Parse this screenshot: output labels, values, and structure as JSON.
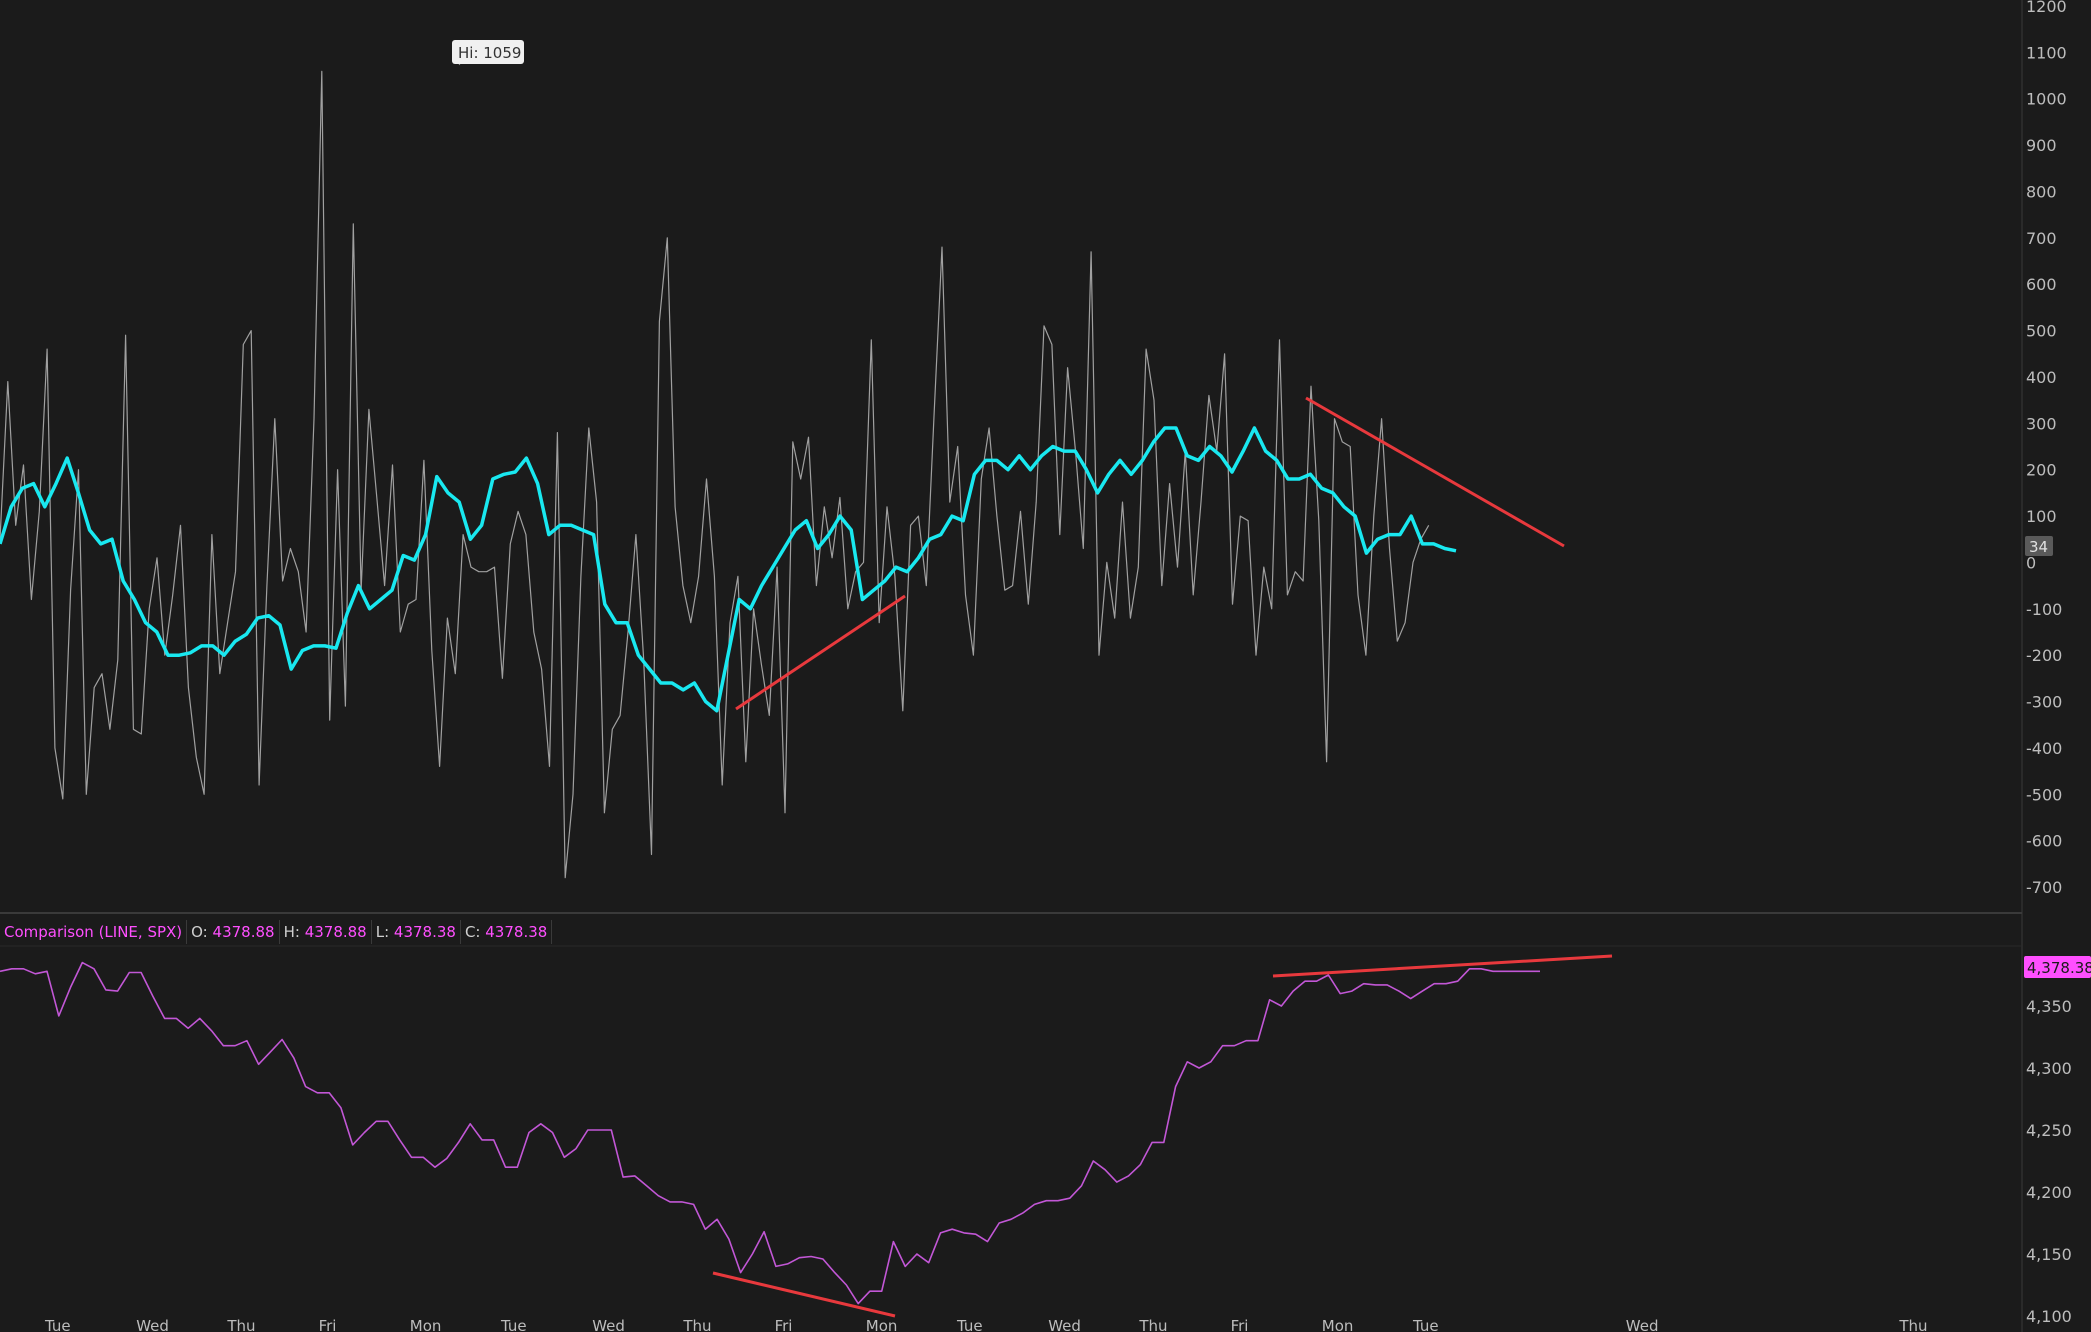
{
  "chart_data": [
    {
      "type": "line",
      "panel": "upper",
      "title": "",
      "ylim": [
        -760,
        1210
      ],
      "yticks": [
        1200,
        1100,
        1000,
        900,
        800,
        700,
        600,
        500,
        400,
        300,
        200,
        100,
        0,
        -100,
        -200,
        -300,
        -400,
        -500,
        -600,
        -700
      ],
      "high_annotation": "Hi: 1059",
      "last_value_badge": "34",
      "series": [
        {
          "color": "#a0a0a0",
          "values": [
            50,
            390,
            80,
            210,
            -80,
            110,
            460,
            -400,
            -510,
            -60,
            200,
            -500,
            -270,
            -240,
            -360,
            -210,
            490,
            -360,
            -370,
            -100,
            10,
            -200,
            -70,
            80,
            -270,
            -420,
            -500,
            60,
            -240,
            -130,
            -20,
            470,
            500,
            -480,
            -50,
            310,
            -40,
            30,
            -20,
            -150,
            310,
            1059,
            -340,
            200,
            -310,
            730,
            -60,
            330,
            140,
            -50,
            210,
            -150,
            -90,
            -80,
            220,
            -190,
            -440,
            -120,
            -240,
            60,
            -10,
            -20,
            -20,
            -10,
            -250,
            40,
            110,
            60,
            -150,
            -230,
            -440,
            280,
            -680,
            -500,
            -30,
            290,
            130,
            -540,
            -360,
            -330,
            -150,
            60,
            -210,
            -630,
            520,
            700,
            120,
            -50,
            -130,
            -30,
            180,
            -30,
            -480,
            -130,
            -30,
            -430,
            -100,
            -220,
            -330,
            -10,
            -540,
            260,
            180,
            270,
            -50,
            120,
            10,
            140,
            -100,
            -20,
            0,
            480,
            -130,
            120,
            -30,
            -320,
            80,
            100,
            -50,
            320,
            680,
            130,
            250,
            -70,
            -200,
            180,
            290,
            100,
            -60,
            -50,
            110,
            -90,
            130,
            510,
            470,
            60,
            420,
            240,
            30,
            670,
            -200,
            0,
            -120,
            130,
            -120,
            -10,
            460,
            350,
            -50,
            170,
            -10,
            240,
            -70,
            130,
            360,
            240,
            450,
            -90,
            100,
            90,
            -200,
            -10,
            -100,
            480,
            -70,
            -20,
            -40,
            380,
            90,
            -430,
            310,
            260,
            250,
            -70,
            -200,
            100,
            310,
            30,
            -170,
            -130,
            0,
            50,
            80
          ],
          "start": 0
        },
        {
          "color": "#19e8f0",
          "values": [
            40,
            120,
            160,
            170,
            120,
            170,
            225,
            150,
            70,
            40,
            50,
            -40,
            -80,
            -130,
            -150,
            -200,
            -200,
            -195,
            -180,
            -180,
            -200,
            -170,
            -155,
            -120,
            -115,
            -135,
            -230,
            -190,
            -180,
            -180,
            -185,
            -110,
            -50,
            -100,
            -80,
            -60,
            15,
            5,
            60,
            185,
            150,
            130,
            50,
            80,
            180,
            190,
            195,
            225,
            170,
            60,
            80,
            80,
            70,
            60,
            -90,
            -130,
            -130,
            -200,
            -230,
            -260,
            -260,
            -275,
            -260,
            -300,
            -320,
            -200,
            -80,
            -100,
            -50,
            -10,
            30,
            70,
            90,
            30,
            60,
            100,
            70,
            -80,
            -60,
            -40,
            -10,
            -20,
            10,
            50,
            60,
            100,
            90,
            190,
            220,
            220,
            200,
            230,
            200,
            230,
            250,
            240,
            240,
            200,
            150,
            190,
            220,
            190,
            220,
            260,
            290,
            290,
            230,
            220,
            250,
            230,
            195,
            240,
            290,
            240,
            220,
            180,
            180,
            190,
            160,
            150,
            120,
            100,
            20,
            50,
            60,
            60,
            100,
            40,
            40,
            30,
            25
          ],
          "start": 0
        }
      ]
    },
    {
      "type": "line",
      "panel": "lower",
      "title": "Comparison (LINE, SPX)",
      "legend": [
        {
          "k": "O:",
          "v": "4378.88"
        },
        {
          "k": "H:",
          "v": "4378.88"
        },
        {
          "k": "L:",
          "v": "4378.38"
        },
        {
          "k": "C:",
          "v": "4378.38"
        }
      ],
      "ylim": [
        4100,
        4395
      ],
      "yticks": [
        "4,350",
        "4,300",
        "4,250",
        "4,200",
        "4,150",
        "4,100"
      ],
      "ytick_values": [
        4350,
        4300,
        4250,
        4200,
        4150,
        4100
      ],
      "last_value_badge": "4,378.38",
      "series": [
        {
          "color": "#c257d6",
          "values": [
            4378,
            4380,
            4380,
            4376,
            4378,
            4342,
            4365,
            4385,
            4380,
            4363,
            4362,
            4377,
            4377,
            4358,
            4340,
            4340,
            4332,
            4340,
            4330,
            4318,
            4318,
            4322,
            4303,
            4313,
            4323,
            4308,
            4285,
            4280,
            4280,
            4268,
            4238,
            4248,
            4257,
            4257,
            4242,
            4228,
            4228,
            4220,
            4227,
            4240,
            4255,
            4242,
            4242,
            4220,
            4220,
            4248,
            4255,
            4248,
            4228,
            4235,
            4250,
            4250,
            4250,
            4212,
            4213,
            4205,
            4197,
            4192,
            4192,
            4190,
            4170,
            4178,
            4162,
            4135,
            4150,
            4168,
            4140,
            4142,
            4147,
            4148,
            4146,
            4135,
            4125,
            4110,
            4120,
            4120,
            4160,
            4140,
            4150,
            4143,
            4167,
            4170,
            4167,
            4166,
            4160,
            4175,
            4178,
            4183,
            4190,
            4193,
            4193,
            4195,
            4205,
            4225,
            4218,
            4208,
            4213,
            4222,
            4240,
            4240,
            4285,
            4305,
            4300,
            4305,
            4318,
            4318,
            4322,
            4322,
            4355,
            4350,
            4362,
            4370,
            4370,
            4375,
            4360,
            4362,
            4368,
            4367,
            4367,
            4362,
            4356,
            4362,
            4368,
            4368,
            4370,
            4380,
            4380,
            4378,
            4378,
            4378,
            4378,
            4378
          ],
          "start": 0
        }
      ]
    }
  ],
  "x_axis": {
    "labels": [
      "Tue",
      "Wed",
      "Thu",
      "Fri",
      "Mon",
      "Tue",
      "Wed",
      "Thu",
      "Fri",
      "Mon",
      "Tue",
      "Wed",
      "Thu",
      "Fri",
      "Mon",
      "Tue",
      "Wed",
      "Thu"
    ],
    "positions": [
      0,
      6,
      12,
      18,
      24,
      30,
      36,
      42,
      48,
      54,
      60,
      66,
      72,
      78,
      84,
      90,
      104,
      122
    ]
  },
  "trendlines_color": "#e8393d"
}
